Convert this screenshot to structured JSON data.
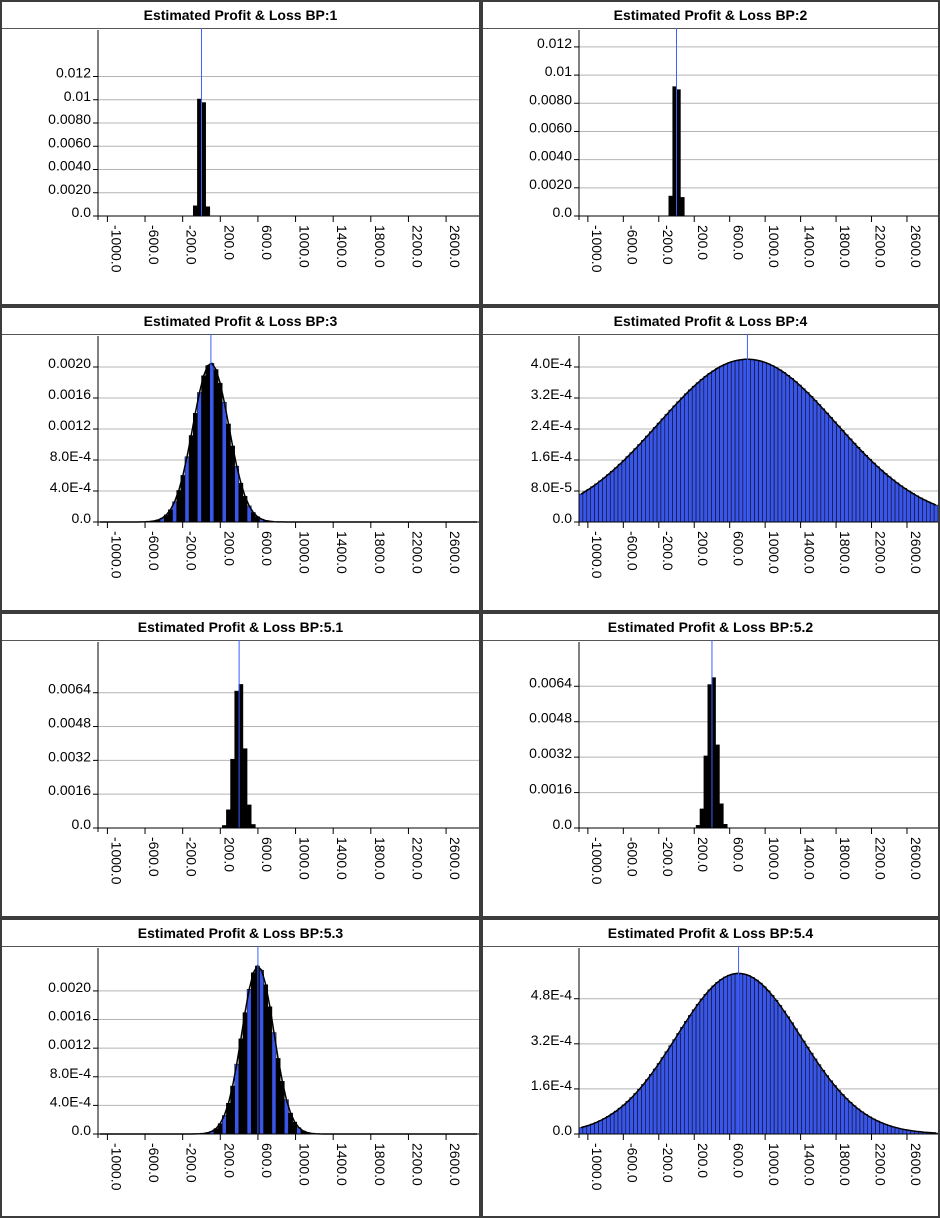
{
  "colors": {
    "background": "#ffffff",
    "border": "#3c3c3c",
    "grid": "#b4b4b4",
    "marker": "#3a62ff",
    "bar_black": "#000000",
    "bar_blue": "#3a56e8"
  },
  "chart_data": [
    {
      "type": "area",
      "title": "Estimated Profit & Loss BP:1",
      "style": "black",
      "mean": 0,
      "sd": 28,
      "x_ticks": [
        "-1000.0",
        "-600.0",
        "-200.0",
        "200.0",
        "600.0",
        "1000.0",
        "1400.0",
        "1800.0",
        "2200.0",
        "2600.0"
      ],
      "y_ticks": [
        "0.0",
        "0.0020",
        "0.0040",
        "0.0060",
        "0.0080",
        "0.01",
        "0.012"
      ],
      "y_tick_values": [
        0,
        0.002,
        0.004,
        0.006,
        0.008,
        0.01,
        0.012
      ],
      "ylim": [
        0,
        0.016
      ],
      "peak_density": 0.0135,
      "grid": true,
      "legend": "none"
    },
    {
      "type": "area",
      "title": "Estimated Profit & Loss BP:2",
      "style": "black",
      "mean": 0,
      "sd": 32,
      "x_ticks": [
        "-1000.0",
        "-600.0",
        "-200.0",
        "200.0",
        "600.0",
        "1000.0",
        "1400.0",
        "1800.0",
        "2200.0",
        "2600.0"
      ],
      "y_ticks": [
        "0.0",
        "0.0020",
        "0.0040",
        "0.0060",
        "0.0080",
        "0.01",
        "0.012"
      ],
      "y_tick_values": [
        0,
        0.002,
        0.004,
        0.006,
        0.008,
        0.01,
        0.012
      ],
      "ylim": [
        0,
        0.0132
      ],
      "peak_density": 0.0115,
      "grid": true,
      "legend": "none"
    },
    {
      "type": "area",
      "title": "Estimated Profit & Loss BP:3",
      "style": "black-blue",
      "mean": 100,
      "sd": 190,
      "x_ticks": [
        "-1000.0",
        "-600.0",
        "-200.0",
        "200.0",
        "600.0",
        "1000.0",
        "1400.0",
        "1800.0",
        "2200.0",
        "2600.0"
      ],
      "y_ticks": [
        "0.0",
        "4.0E-4",
        "8.0E-4",
        "0.0012",
        "0.0016",
        "0.0020"
      ],
      "y_tick_values": [
        0,
        0.0004,
        0.0008,
        0.0012,
        0.0016,
        0.002
      ],
      "ylim": [
        0,
        0.0024
      ],
      "peak_density": 0.00205,
      "grid": true,
      "legend": "none"
    },
    {
      "type": "area",
      "title": "Estimated Profit & Loss BP:4",
      "style": "blue",
      "mean": 800,
      "sd": 1000,
      "x_ticks": [
        "-1000.0",
        "-600.0",
        "-200.0",
        "200.0",
        "600.0",
        "1000.0",
        "1400.0",
        "1800.0",
        "2200.0",
        "2600.0"
      ],
      "y_ticks": [
        "0.0",
        "8.0E-5",
        "1.6E-4",
        "2.4E-4",
        "3.2E-4",
        "4.0E-4"
      ],
      "y_tick_values": [
        0,
        8e-05,
        0.00016,
        0.00024,
        0.00032,
        0.0004
      ],
      "ylim": [
        0,
        0.00048
      ],
      "peak_density": 0.00042,
      "grid": true,
      "legend": "none"
    },
    {
      "type": "area",
      "title": "Estimated Profit & Loss BP:5.1",
      "style": "black",
      "mean": 400,
      "sd": 55,
      "x_ticks": [
        "-1000.0",
        "-600.0",
        "-200.0",
        "200.0",
        "600.0",
        "1000.0",
        "1400.0",
        "1800.0",
        "2200.0",
        "2600.0"
      ],
      "y_ticks": [
        "0.0",
        "0.0016",
        "0.0032",
        "0.0048",
        "0.0064"
      ],
      "y_tick_values": [
        0,
        0.0016,
        0.0032,
        0.0048,
        0.0064
      ],
      "ylim": [
        0,
        0.0088
      ],
      "peak_density": 0.0072,
      "grid": true,
      "legend": "none"
    },
    {
      "type": "area",
      "title": "Estimated Profit & Loss BP:5.2",
      "style": "black",
      "mean": 400,
      "sd": 55,
      "x_ticks": [
        "-1000.0",
        "-600.0",
        "-200.0",
        "200.0",
        "600.0",
        "1000.0",
        "1400.0",
        "1800.0",
        "2200.0",
        "2600.0"
      ],
      "y_ticks": [
        "0.0",
        "0.0016",
        "0.0032",
        "0.0048",
        "0.0064"
      ],
      "y_tick_values": [
        0,
        0.0016,
        0.0032,
        0.0048,
        0.0064
      ],
      "ylim": [
        0,
        0.0084
      ],
      "peak_density": 0.0072,
      "grid": true,
      "legend": "none"
    },
    {
      "type": "area",
      "title": "Estimated Profit & Loss BP:5.3",
      "style": "black-blue",
      "mean": 600,
      "sd": 170,
      "x_ticks": [
        "-1000.0",
        "-600.0",
        "-200.0",
        "200.0",
        "600.0",
        "1000.0",
        "1400.0",
        "1800.0",
        "2200.0",
        "2600.0"
      ],
      "y_ticks": [
        "0.0",
        "4.0E-4",
        "8.0E-4",
        "0.0012",
        "0.0016",
        "0.0020"
      ],
      "y_tick_values": [
        0,
        0.0004,
        0.0008,
        0.0012,
        0.0016,
        0.002
      ],
      "ylim": [
        0,
        0.0026
      ],
      "peak_density": 0.00235,
      "grid": true,
      "legend": "none"
    },
    {
      "type": "area",
      "title": "Estimated Profit & Loss BP:5.4",
      "style": "blue",
      "mean": 700,
      "sd": 700,
      "x_ticks": [
        "-1000.0",
        "-600.0",
        "-200.0",
        "200.0",
        "600.0",
        "1000.0",
        "1400.0",
        "1800.0",
        "2200.0",
        "2600.0"
      ],
      "y_ticks": [
        "0.0",
        "1.6E-4",
        "3.2E-4",
        "4.8E-4"
      ],
      "y_tick_values": [
        0,
        0.00016,
        0.00032,
        0.00048
      ],
      "ylim": [
        0,
        0.00066
      ],
      "peak_density": 0.00057,
      "grid": true,
      "legend": "none"
    }
  ]
}
